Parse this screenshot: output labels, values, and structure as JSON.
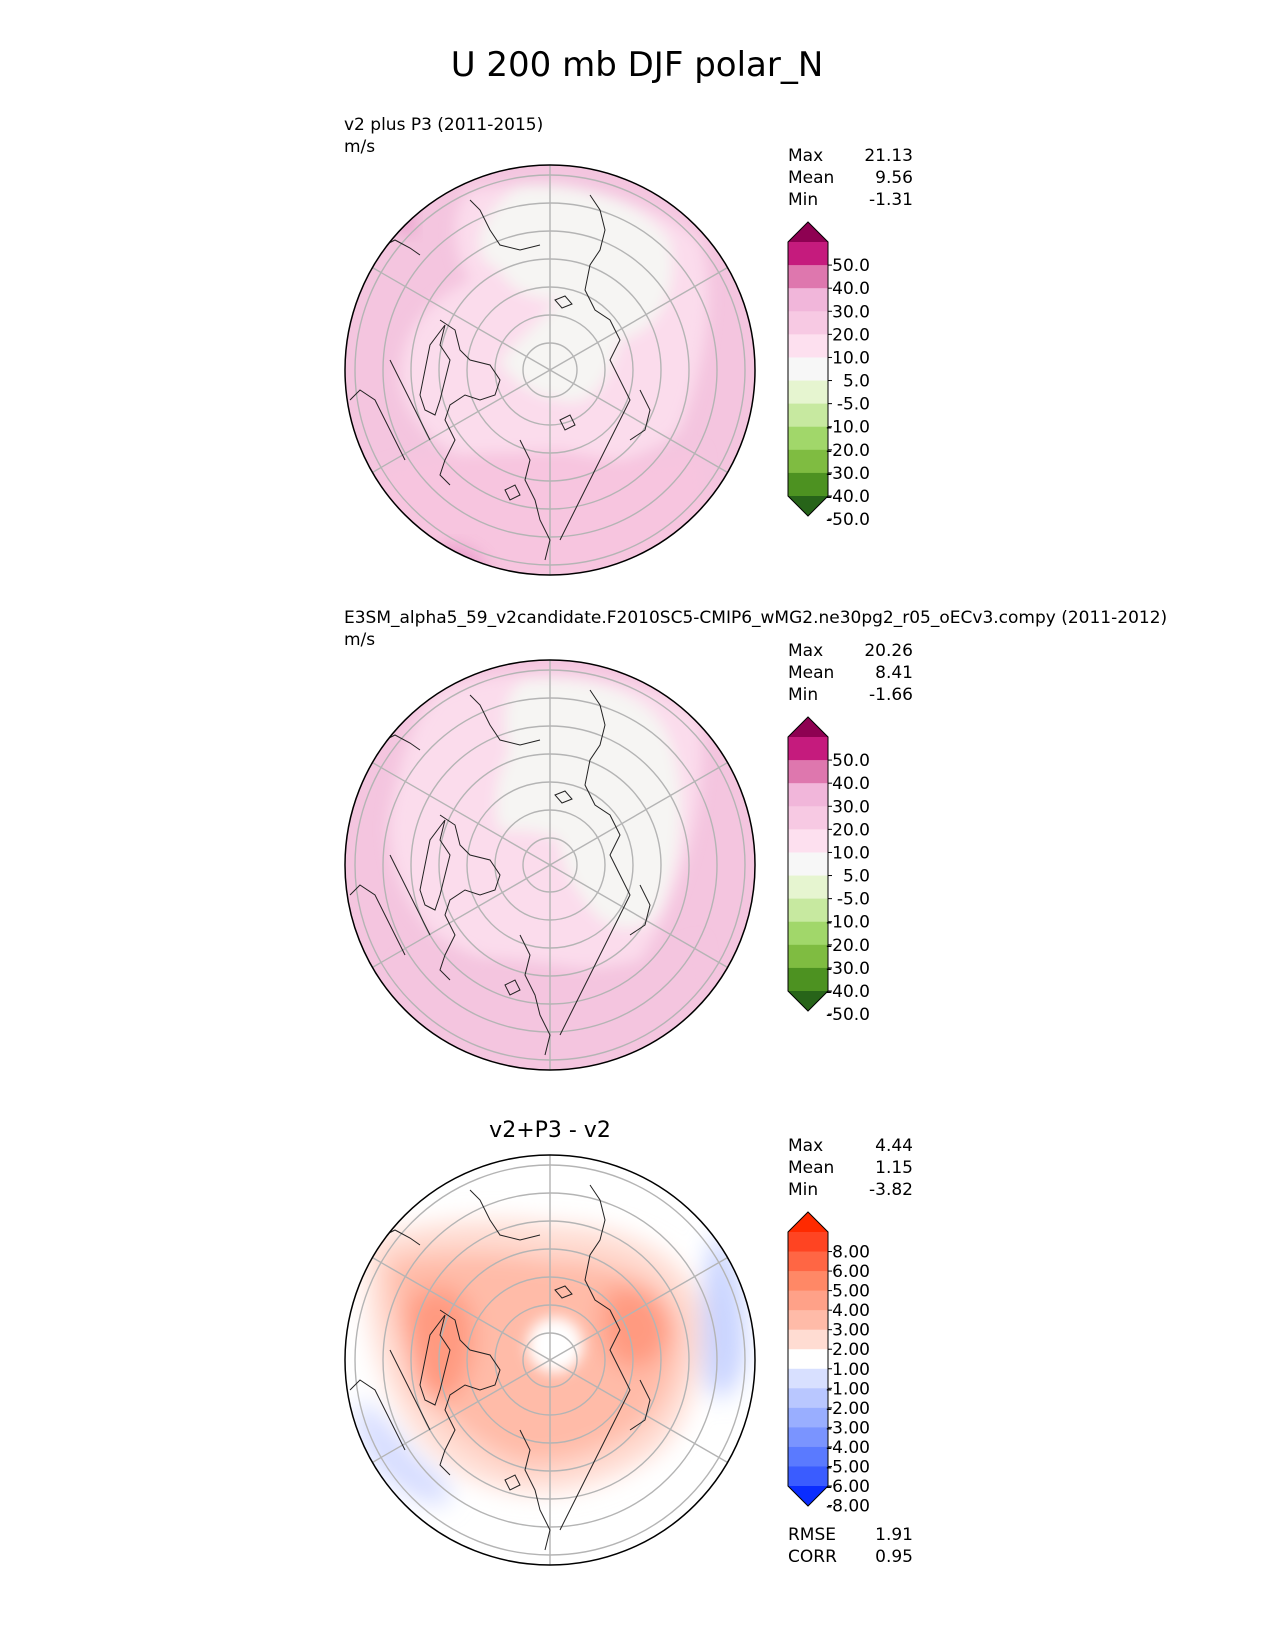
{
  "figure": {
    "title": "U 200 mb DJF polar_N"
  },
  "chart_data": [
    {
      "type": "heatmap",
      "projection": "north-polar-stereographic",
      "title": "",
      "subtitle_line1": "v2 plus P3 (2011-2015)",
      "subtitle_line2": "m/s",
      "stats": [
        {
          "label": "Max",
          "value": "21.13"
        },
        {
          "label": "Mean",
          "value": "9.56"
        },
        {
          "label": "Min",
          "value": "-1.31"
        }
      ],
      "colorbar": {
        "ticks": [
          "50.0",
          "40.0",
          "30.0",
          "20.0",
          "10.0",
          "5.0",
          "-5.0",
          "-10.0",
          "-20.0",
          "-30.0",
          "-40.0",
          "-50.0"
        ],
        "colors": [
          "#8e0152",
          "#c51b7d",
          "#de77ae",
          "#f1b6da",
          "#f7c9e3",
          "#fde0ef",
          "#f7f7f7",
          "#e6f5d0",
          "#c7e9a0",
          "#a1d76a",
          "#7fbc41",
          "#4d9221",
          "#276419"
        ],
        "extend": "both"
      },
      "dominant_level": "10.0-20.0"
    },
    {
      "type": "heatmap",
      "projection": "north-polar-stereographic",
      "title": "",
      "subtitle_line1": "E3SM_alpha5_59_v2candidate.F2010SC5-CMIP6_wMG2.ne30pg2_r05_oECv3.compy (2011-2012)",
      "subtitle_line2": "m/s",
      "stats": [
        {
          "label": "Max",
          "value": "20.26"
        },
        {
          "label": "Mean",
          "value": "8.41"
        },
        {
          "label": "Min",
          "value": "-1.66"
        }
      ],
      "colorbar": {
        "ticks": [
          "50.0",
          "40.0",
          "30.0",
          "20.0",
          "10.0",
          "5.0",
          "-5.0",
          "-10.0",
          "-20.0",
          "-30.0",
          "-40.0",
          "-50.0"
        ],
        "colors": [
          "#8e0152",
          "#c51b7d",
          "#de77ae",
          "#f1b6da",
          "#f7c9e3",
          "#fde0ef",
          "#f7f7f7",
          "#e6f5d0",
          "#c7e9a0",
          "#a1d76a",
          "#7fbc41",
          "#4d9221",
          "#276419"
        ],
        "extend": "both"
      },
      "dominant_level": "10.0-20.0"
    },
    {
      "type": "heatmap",
      "projection": "north-polar-stereographic",
      "title": "v2+P3 - v2",
      "subtitle_line1": "",
      "subtitle_line2": "",
      "stats": [
        {
          "label": "Max",
          "value": "4.44"
        },
        {
          "label": "Mean",
          "value": "1.15"
        },
        {
          "label": "Min",
          "value": "-3.82"
        }
      ],
      "colorbar": {
        "ticks": [
          "8.00",
          "6.00",
          "5.00",
          "4.00",
          "3.00",
          "2.00",
          "1.00",
          "-1.00",
          "-2.00",
          "-3.00",
          "-4.00",
          "-5.00",
          "-6.00",
          "-8.00"
        ],
        "colors": [
          "#ff2a00",
          "#ff4422",
          "#ff6644",
          "#ff8866",
          "#ffa188",
          "#ffbba8",
          "#ffdcd2",
          "#ffffff",
          "#d8e0ff",
          "#b9c7ff",
          "#99aeff",
          "#7a94ff",
          "#5a7aff",
          "#3a5cff",
          "#0a2dff"
        ],
        "extend": "both"
      },
      "metrics": [
        {
          "label": "RMSE",
          "value": "1.91"
        },
        {
          "label": "CORR",
          "value": "0.95"
        }
      ]
    }
  ]
}
